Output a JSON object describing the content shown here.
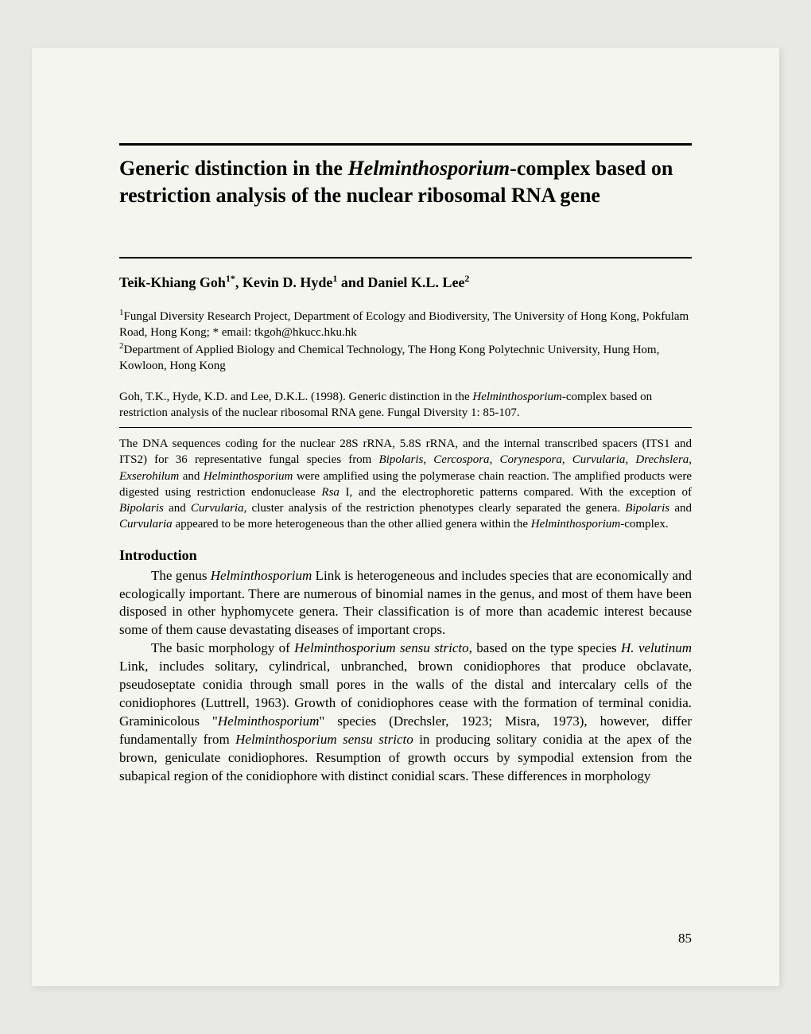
{
  "title_part1": "Generic distinction in the ",
  "title_italic": "Helminthosporium",
  "title_part2": "-complex based on restriction analysis of the nuclear ribosomal RNA gene",
  "authors_html": "Teik-Khiang Goh<sup>1*</sup>, Kevin D. Hyde<sup>1</sup> and Daniel K.L. Lee<sup>2</sup>",
  "affiliation1_html": "<sup>1</sup>Fungal Diversity Research Project, Department of Ecology and Biodiversity, The University of Hong Kong, Pokfulam Road, Hong Kong; * email: tkgoh@hkucc.hku.hk",
  "affiliation2_html": "<sup>2</sup>Department of Applied Biology and Chemical Technology, The Hong Kong Polytechnic University, Hung Hom, Kowloon, Hong Kong",
  "citation_html": "Goh, T.K., Hyde, K.D. and Lee, D.K.L. (1998). Generic distinction in the <span class=\"italic\">Helminthosporium</span>-complex based on restriction analysis of the nuclear ribosomal RNA gene. Fungal Diversity 1: 85-107.",
  "abstract_html": "The DNA sequences coding for the nuclear 28S rRNA, 5.8S rRNA, and the internal transcribed spacers (ITS1 and ITS2) for 36 representative fungal species from <span class=\"italic\">Bipolaris</span>, <span class=\"italic\">Cercospora</span>, <span class=\"italic\">Corynespora</span>, <span class=\"italic\">Curvularia</span>, <span class=\"italic\">Drechslera</span>, <span class=\"italic\">Exserohilum</span> and <span class=\"italic\">Helminthosporium</span> were amplified using the polymerase chain reaction. The amplified products were digested using restriction endonuclease <span class=\"italic\">Rsa</span> I, and the electrophoretic patterns compared. With the exception of <span class=\"italic\">Bipolaris</span> and <span class=\"italic\">Curvularia</span>, cluster analysis of the restriction phenotypes clearly separated the genera. <span class=\"italic\">Bipolaris</span> and <span class=\"italic\">Curvularia</span> appeared to be more heterogeneous than the other allied genera within the <span class=\"italic\">Helminthosporium</span>-complex.",
  "section_heading": "Introduction",
  "para1_html": "The genus <span class=\"italic\">Helminthosporium</span> Link is heterogeneous and includes species that are economically and ecologically important. There are numerous of binomial names in the genus, and most of them have been disposed in other hyphomycete genera. Their classification is of more than academic interest because some of them cause devastating diseases of important crops.",
  "para2_html": "The basic morphology of <span class=\"italic\">Helminthosporium sensu stricto</span>, based on the type species <span class=\"italic\">H. velutinum</span> Link, includes solitary, cylindrical, unbranched, brown conidiophores that produce obclavate, pseudoseptate conidia through small pores in the walls of the distal and intercalary cells of the conidiophores (Luttrell, 1963). Growth of conidiophores cease with the formation of terminal conidia. Graminicolous \"<span class=\"italic\">Helminthosporium</span>\" species (Drechsler, 1923; Misra, 1973), however, differ fundamentally from <span class=\"italic\">Helminthosporium sensu stricto</span> in producing solitary conidia at the apex of the brown, geniculate conidiophores. Resumption of growth occurs by sympodial extension from the subapical region of the conidiophore with distinct conidial scars. These differences in morphology",
  "page_number": "85",
  "styling": {
    "page_bg": "#f5f5f0",
    "outer_bg": "#e8e8e4",
    "title_fontsize": 26,
    "authors_fontsize": 18,
    "affiliations_fontsize": 15,
    "body_fontsize": 17,
    "rule_thick": 3,
    "rule_medium": 2.5,
    "rule_thin": 1
  }
}
